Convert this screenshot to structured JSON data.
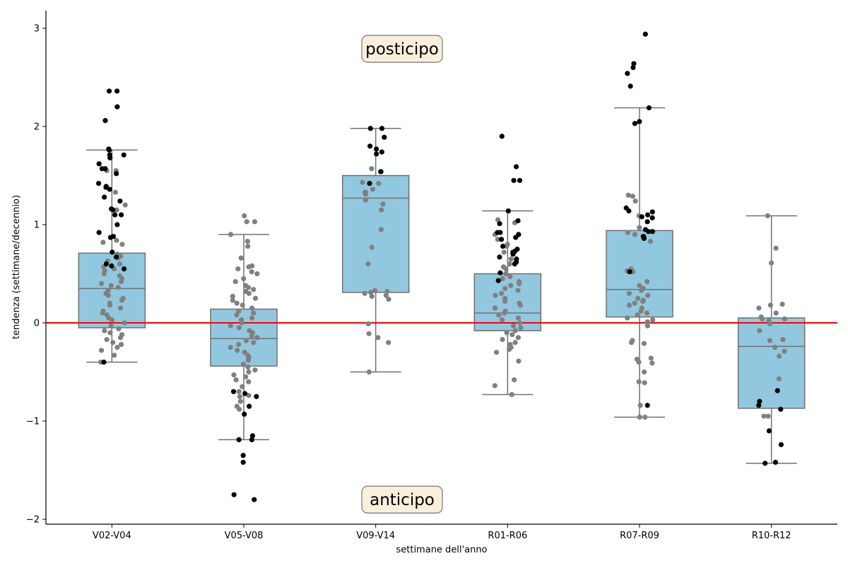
{
  "chart_data": {
    "type": "boxplot",
    "xlabel": "settimane dell'anno",
    "ylabel": "tendenza (settimane/decennio)",
    "ylim": [
      -2.05,
      3.18
    ],
    "yticks": [
      -2,
      -1,
      0,
      1,
      2,
      3
    ],
    "ytick_labels": [
      "−2",
      "−1",
      "0",
      "1",
      "2",
      "3"
    ],
    "categories": [
      "V02-V04",
      "V05-V08",
      "V09-V14",
      "R01-R06",
      "R07-R09",
      "R10-R12"
    ],
    "reference_line": {
      "y": 0,
      "color": "#ff0000"
    },
    "annotations": [
      {
        "text": "posticipo",
        "x_category_index": 2.2,
        "y": 2.79
      },
      {
        "text": "anticipo",
        "x_category_index": 2.2,
        "y": -1.8
      }
    ],
    "colors": {
      "box_fill": "#92c8df",
      "box_edge": "#707070",
      "point_nonsignificant": "#808080",
      "point_significant": "#000000",
      "annotation_fill": "#faefdb",
      "annotation_edge": "#808080"
    },
    "boxes": [
      {
        "category": "V02-V04",
        "whisker_low": -0.4,
        "q1": -0.05,
        "median": 0.35,
        "q3": 0.71,
        "whisker_high": 1.76
      },
      {
        "category": "V05-V08",
        "whisker_low": -1.19,
        "q1": -0.44,
        "median": -0.16,
        "q3": 0.14,
        "whisker_high": 0.9
      },
      {
        "category": "V09-V14",
        "whisker_low": -0.5,
        "q1": 0.31,
        "median": 1.27,
        "q3": 1.5,
        "whisker_high": 1.98
      },
      {
        "category": "R01-R06",
        "whisker_low": -0.73,
        "q1": -0.08,
        "median": 0.1,
        "q3": 0.5,
        "whisker_high": 1.14
      },
      {
        "category": "R07-R09",
        "whisker_low": -0.96,
        "q1": 0.06,
        "median": 0.34,
        "q3": 0.94,
        "whisker_high": 2.19
      },
      {
        "category": "R10-R12",
        "whisker_low": -1.43,
        "q1": -0.87,
        "median": -0.24,
        "q3": 0.05,
        "whisker_high": 1.09
      }
    ],
    "points": [
      {
        "category": "V02-V04",
        "significant": [
          2.36,
          2.36,
          2.2,
          2.06,
          1.77,
          1.76,
          1.71,
          1.71,
          1.68,
          1.62,
          1.57,
          1.57,
          1.52,
          1.42,
          1.39,
          1.38,
          1.36,
          1.28,
          1.24,
          1.16,
          1.15,
          1.1,
          1.1,
          1.0,
          0.92,
          0.88,
          0.87,
          0.72,
          0.67,
          0.6,
          0.58,
          0.55,
          -0.4
        ],
        "nonsignificant": [
          1.55,
          1.55,
          1.33,
          1.2,
          1.15,
          0.84,
          0.82,
          0.8,
          0.7,
          0.68,
          0.66,
          0.63,
          0.6,
          0.57,
          0.55,
          0.53,
          0.5,
          0.48,
          0.45,
          0.42,
          0.4,
          0.38,
          0.36,
          0.33,
          0.3,
          0.28,
          0.25,
          0.23,
          0.2,
          0.18,
          0.15,
          0.12,
          0.1,
          0.08,
          0.05,
          0.03,
          0.0,
          -0.03,
          -0.06,
          -0.08,
          -0.1,
          -0.12,
          -0.15,
          -0.17,
          -0.2,
          -0.22,
          -0.25,
          -0.28,
          -0.33,
          -0.4
        ]
      },
      {
        "category": "V05-V08",
        "significant": [
          -0.7,
          -0.72,
          -0.75,
          -0.85,
          -0.93,
          -1.15,
          -1.19,
          -1.19,
          -1.35,
          -1.42,
          -1.75,
          -1.8
        ],
        "nonsignificant": [
          1.09,
          1.03,
          1.03,
          0.9,
          0.83,
          0.78,
          0.66,
          0.58,
          0.57,
          0.55,
          0.52,
          0.5,
          0.45,
          0.42,
          0.38,
          0.36,
          0.34,
          0.32,
          0.3,
          0.27,
          0.25,
          0.23,
          0.2,
          0.18,
          0.15,
          0.12,
          0.1,
          0.08,
          0.05,
          0.03,
          0.0,
          -0.03,
          -0.05,
          -0.08,
          -0.1,
          -0.13,
          -0.15,
          -0.18,
          -0.2,
          -0.22,
          -0.25,
          -0.28,
          -0.3,
          -0.33,
          -0.35,
          -0.38,
          -0.42,
          -0.45,
          -0.48,
          -0.5,
          -0.53,
          -0.55,
          -0.58,
          -0.6,
          -0.65,
          -0.7,
          -0.74,
          -0.75,
          -0.8,
          -0.85,
          -0.88
        ]
      },
      {
        "category": "V09-V14",
        "significant": [
          1.98,
          1.98,
          1.89,
          1.8,
          1.77,
          1.74,
          1.72,
          1.54,
          1.54,
          1.42
        ],
        "nonsignificant": [
          1.57,
          1.43,
          1.42,
          1.36,
          1.33,
          1.33,
          1.31,
          1.25,
          1.21,
          1.15,
          0.95,
          0.77,
          0.6,
          0.33,
          0.32,
          0.31,
          0.3,
          0.28,
          0.27,
          0.24,
          -0.01,
          -0.11,
          -0.15,
          -0.2,
          -0.5
        ]
      },
      {
        "category": "R01-R06",
        "significant": [
          1.9,
          1.59,
          1.45,
          1.45,
          1.14,
          1.04,
          1.01,
          0.92,
          0.92,
          0.9,
          0.87,
          0.85,
          0.78,
          0.75,
          0.73,
          0.72,
          0.7,
          0.67,
          0.65,
          0.62,
          0.6,
          0.51,
          0.43
        ],
        "nonsignificant": [
          1.05,
          1.02,
          0.9,
          0.85,
          0.8,
          0.78,
          0.72,
          0.7,
          0.65,
          0.6,
          0.57,
          0.55,
          0.5,
          0.47,
          0.45,
          0.42,
          0.4,
          0.38,
          0.35,
          0.33,
          0.3,
          0.28,
          0.25,
          0.22,
          0.2,
          0.18,
          0.15,
          0.12,
          0.1,
          0.08,
          0.05,
          0.03,
          0.0,
          -0.03,
          -0.05,
          -0.08,
          -0.1,
          -0.12,
          -0.15,
          -0.17,
          -0.2,
          -0.22,
          -0.25,
          -0.27,
          -0.3,
          -0.39,
          -0.58,
          -0.64,
          -0.73
        ]
      },
      {
        "category": "R07-R09",
        "significant": [
          2.94,
          2.64,
          2.6,
          2.54,
          2.41,
          2.19,
          2.05,
          2.03,
          1.17,
          1.14,
          1.13,
          1.1,
          1.08,
          1.07,
          1.03,
          0.95,
          0.93,
          0.93,
          0.88,
          0.86,
          0.52,
          -0.84
        ],
        "nonsignificant": [
          1.3,
          1.29,
          1.24,
          1.09,
          0.97,
          0.92,
          0.9,
          0.88,
          0.83,
          0.55,
          0.53,
          0.52,
          0.42,
          0.38,
          0.35,
          0.33,
          0.3,
          0.28,
          0.25,
          0.23,
          0.22,
          0.2,
          0.18,
          0.15,
          0.12,
          0.1,
          0.08,
          0.05,
          0.03,
          0.01,
          -0.03,
          -0.18,
          -0.2,
          -0.21,
          -0.36,
          -0.37,
          -0.4,
          -0.41,
          -0.5,
          -0.6,
          -0.61,
          -0.84,
          -0.96,
          -0.96
        ]
      },
      {
        "category": "R10-R12",
        "significant": [
          -0.69,
          -0.8,
          -0.84,
          -0.88,
          -1.1,
          -1.24,
          -1.42,
          -1.43
        ],
        "nonsignificant": [
          1.09,
          0.76,
          0.61,
          0.19,
          0.18,
          0.15,
          0.1,
          0.06,
          0.04,
          0.04,
          0.02,
          -0.01,
          -0.08,
          -0.17,
          -0.18,
          -0.25,
          -0.29,
          -0.34,
          -0.57,
          -0.95,
          -0.95
        ]
      }
    ]
  }
}
